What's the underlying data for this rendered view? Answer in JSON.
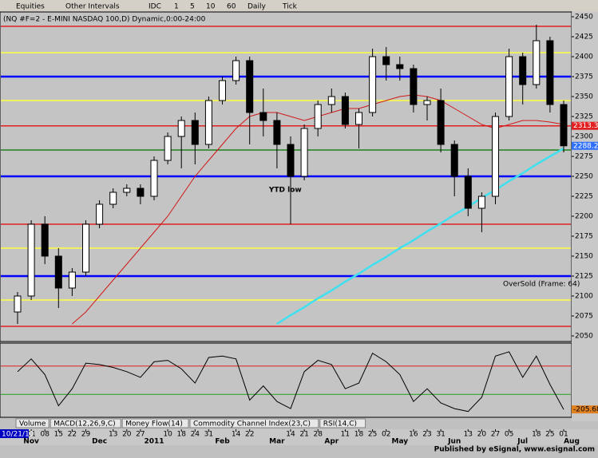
{
  "toolbar": {
    "menus": [
      "Equities",
      "Other Intervals",
      "IDC",
      "1",
      "5",
      "10",
      "60",
      "Daily",
      "Tick"
    ]
  },
  "chart_data": {
    "type": "candlestick",
    "title": "(NQ #F=2 - E-MINI NASDAQ 100,D) Dynamic,0:00-24:00",
    "start_date": "10/21/10",
    "categories": [
      null,
      "01",
      "08",
      "15",
      "22",
      "29",
      null,
      "13",
      "20",
      "27",
      null,
      "10",
      "18",
      "24",
      "31",
      null,
      "14",
      "22",
      null,
      null,
      "14",
      "21",
      "28",
      null,
      "11",
      "18",
      "25",
      "02",
      null,
      "16",
      "23",
      "31",
      null,
      "13",
      "20",
      "27",
      "05",
      null,
      "18",
      "25",
      "01"
    ],
    "month_labels": [
      null,
      "Nov",
      null,
      null,
      null,
      null,
      "Dec",
      null,
      null,
      null,
      "2011",
      null,
      null,
      null,
      null,
      "Feb",
      null,
      null,
      null,
      "Mar",
      null,
      null,
      null,
      "Apr",
      null,
      null,
      null,
      null,
      "May",
      null,
      null,
      null,
      "Jun",
      null,
      null,
      null,
      null,
      "Jul",
      null,
      null,
      "Aug"
    ],
    "open": [
      2080,
      2100,
      2190,
      2150,
      2110,
      2130,
      2190,
      2215,
      2230,
      2235,
      2225,
      2270,
      2300,
      2320,
      2290,
      2345,
      2370,
      2395,
      2330,
      2320,
      2290,
      2250,
      2310,
      2340,
      2350,
      2315,
      2330,
      2400,
      2390,
      2385,
      2340,
      2345,
      2290,
      2250,
      2210,
      2225,
      2325,
      2400,
      2365,
      2420,
      2340
    ],
    "high": [
      2105,
      2195,
      2200,
      2160,
      2135,
      2195,
      2220,
      2235,
      2240,
      2240,
      2275,
      2305,
      2325,
      2330,
      2350,
      2375,
      2400,
      2400,
      2360,
      2330,
      2300,
      2315,
      2345,
      2360,
      2355,
      2335,
      2410,
      2412,
      2400,
      2390,
      2350,
      2360,
      2295,
      2260,
      2230,
      2330,
      2410,
      2405,
      2440,
      2425,
      2345
    ],
    "low": [
      2065,
      2095,
      2140,
      2085,
      2100,
      2125,
      2185,
      2210,
      2225,
      2215,
      2220,
      2265,
      2260,
      2265,
      2285,
      2340,
      2365,
      2290,
      2300,
      2260,
      2190,
      2245,
      2300,
      2330,
      2310,
      2285,
      2325,
      2370,
      2370,
      2330,
      2320,
      2280,
      2225,
      2200,
      2180,
      2215,
      2320,
      2340,
      2360,
      2330,
      2280
    ],
    "close": [
      2100,
      2190,
      2150,
      2110,
      2130,
      2190,
      2215,
      2230,
      2235,
      2225,
      2270,
      2300,
      2320,
      2290,
      2345,
      2370,
      2395,
      2330,
      2320,
      2290,
      2250,
      2310,
      2340,
      2350,
      2315,
      2330,
      2400,
      2390,
      2385,
      2340,
      2345,
      2290,
      2250,
      2210,
      2225,
      2325,
      2400,
      2365,
      2420,
      2340,
      2288.25
    ],
    "ylim": [
      2045,
      2455
    ],
    "yticks": [
      2050,
      2075,
      2100,
      2125,
      2150,
      2175,
      2200,
      2225,
      2250,
      2275,
      2300,
      2325,
      2350,
      2375,
      2400,
      2425,
      2450
    ],
    "levels": [
      {
        "value": 2438,
        "color": "#e02020"
      },
      {
        "value": 2405,
        "color": "#ffff40"
      },
      {
        "value": 2375,
        "color": "#0000ff"
      },
      {
        "value": 2345,
        "color": "#ffff40"
      },
      {
        "value": 2313.3,
        "color": "#e02020"
      },
      {
        "value": 2283,
        "color": "#208020"
      },
      {
        "value": 2250,
        "color": "#0000ff"
      },
      {
        "value": 2190,
        "color": "#e02020"
      },
      {
        "value": 2160,
        "color": "#ffff40"
      },
      {
        "value": 2125,
        "color": "#0000ff"
      },
      {
        "value": 2095,
        "color": "#ffff40"
      },
      {
        "value": 2062,
        "color": "#e02020"
      }
    ],
    "price_labels": [
      {
        "value": 2313.3,
        "label": "2313.30",
        "color": "#e02020"
      },
      {
        "value": 2288.25,
        "label": "2288.25",
        "color": "#3070ff"
      }
    ],
    "overlays": [
      {
        "color": "#d01818",
        "values": [
          null,
          null,
          null,
          null,
          2065,
          2080,
          2100,
          2120,
          2140,
          2160,
          2180,
          2200,
          2225,
          2250,
          2270,
          2290,
          2310,
          2325,
          2330,
          2330,
          2325,
          2320,
          2325,
          2330,
          2335,
          2335,
          2340,
          2345,
          2350,
          2352,
          2350,
          2345,
          2335,
          2325,
          2315,
          2310,
          2315,
          2320,
          2320,
          2318,
          2315
        ]
      },
      {
        "color": "#40e0f0",
        "values": [
          null,
          null,
          null,
          null,
          null,
          null,
          null,
          null,
          null,
          null,
          null,
          null,
          null,
          null,
          null,
          null,
          null,
          null,
          null,
          2065,
          2076,
          2086,
          2097,
          2107,
          2118,
          2128,
          2139,
          2149,
          2160,
          2170,
          2181,
          2191,
          2202,
          2212,
          2223,
          2233,
          2244,
          2254,
          2265,
          2275,
          2285
        ]
      }
    ],
    "annotations": [
      "YTD low",
      "OverSold (Frame: 64)"
    ],
    "oscillator": {
      "ylim": [
        -250,
        250
      ],
      "levels": [
        {
          "value": 100,
          "color": "#e02020"
        },
        {
          "value": -100,
          "color": "#20a020"
        }
      ],
      "values": [
        60,
        150,
        40,
        -180,
        -60,
        120,
        110,
        90,
        60,
        20,
        130,
        140,
        80,
        -20,
        160,
        170,
        150,
        -140,
        -40,
        -150,
        -200,
        60,
        140,
        110,
        -60,
        -20,
        190,
        130,
        40,
        -150,
        -60,
        -160,
        -200,
        -220,
        -120,
        170,
        200,
        20,
        170,
        -30,
        -205.68
      ],
      "last_label": {
        "value": -205.68,
        "label": "-205.68"
      }
    },
    "tabs": [
      "Volume",
      "MACD(12,26,9,C)",
      "Money Flow(14)",
      "Commodity Channel Index(23,C)",
      "RSI(14,C)"
    ],
    "footer": "Published by eSignal, www.esignal.com"
  }
}
